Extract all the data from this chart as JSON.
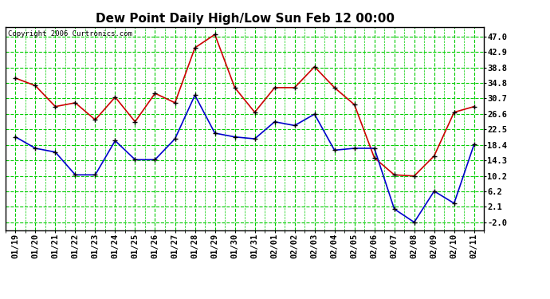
{
  "title": "Dew Point Daily High/Low Sun Feb 12 00:00",
  "copyright": "Copyright 2006 Curtronics.com",
  "x_labels": [
    "01/19",
    "01/20",
    "01/21",
    "01/22",
    "01/23",
    "01/24",
    "01/25",
    "01/26",
    "01/27",
    "01/28",
    "01/29",
    "01/30",
    "01/31",
    "02/01",
    "02/02",
    "02/03",
    "02/04",
    "02/05",
    "02/06",
    "02/07",
    "02/08",
    "02/09",
    "02/10",
    "02/11"
  ],
  "high_values": [
    36.0,
    34.0,
    28.5,
    29.5,
    25.0,
    31.0,
    24.5,
    32.0,
    29.5,
    44.0,
    47.5,
    33.5,
    27.0,
    33.5,
    33.5,
    39.0,
    33.5,
    29.0,
    15.0,
    10.5,
    10.2,
    15.5,
    27.0,
    28.5
  ],
  "low_values": [
    20.5,
    17.5,
    16.5,
    10.5,
    10.5,
    19.5,
    14.5,
    14.5,
    20.0,
    31.5,
    21.5,
    20.5,
    20.0,
    24.5,
    23.5,
    26.5,
    17.0,
    17.5,
    17.5,
    1.5,
    -2.0,
    6.2,
    3.0,
    18.5
  ],
  "high_color": "#cc0000",
  "low_color": "#0000cc",
  "marker_color": "#000000",
  "grid_color": "#00cc00",
  "bg_color": "#ffffff",
  "plot_bg_color": "#ffffff",
  "yticks": [
    -2.0,
    2.1,
    6.2,
    10.2,
    14.3,
    18.4,
    22.5,
    26.6,
    30.7,
    34.8,
    38.8,
    42.9,
    47.0
  ],
  "ylim": [
    -4.1,
    49.5
  ],
  "title_fontsize": 11,
  "tick_fontsize": 7.5
}
